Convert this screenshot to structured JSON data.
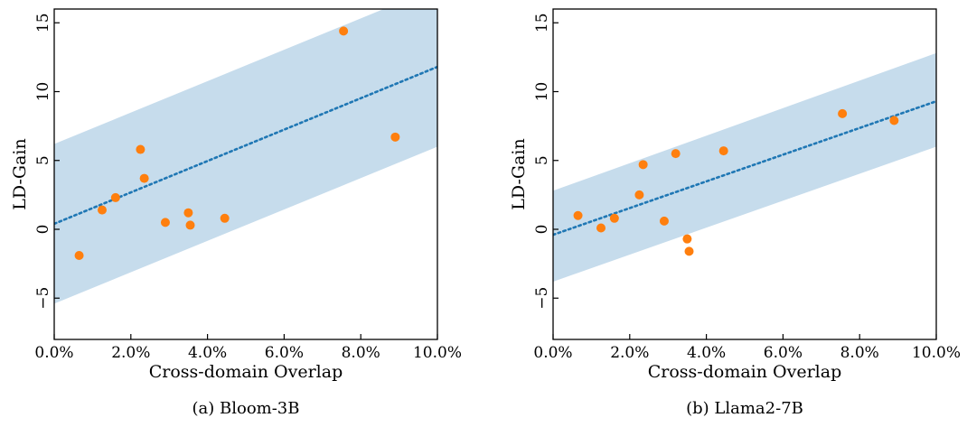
{
  "chart_data": [
    {
      "type": "scatter",
      "caption": "(a) Bloom-3B",
      "xlabel": "Cross-domain Overlap",
      "ylabel": "LD-Gain",
      "xlim": [
        0,
        10
      ],
      "ylim": [
        -8,
        16
      ],
      "xticks": [
        0,
        2,
        4,
        6,
        8,
        10
      ],
      "xtick_labels": [
        "0.0%",
        "2.0%",
        "4.0%",
        "6.0%",
        "8.0%",
        "10.0%"
      ],
      "yticks": [
        -5,
        0,
        5,
        10,
        15
      ],
      "ytick_labels": [
        "−5",
        "0",
        "5",
        "10",
        "15"
      ],
      "grid": false,
      "points": {
        "x": [
          0.65,
          1.25,
          1.6,
          2.25,
          2.35,
          2.9,
          3.5,
          3.55,
          4.45,
          7.55,
          8.9
        ],
        "y": [
          -1.9,
          1.4,
          2.3,
          5.8,
          3.7,
          0.5,
          1.2,
          0.3,
          0.8,
          14.4,
          6.7
        ]
      },
      "fit_line": {
        "x": [
          0,
          10
        ],
        "y": [
          0.4,
          11.8
        ]
      },
      "band": {
        "upper": [
          6.2,
          17.6
        ],
        "lower": [
          -5.4,
          6.0
        ]
      },
      "colors": {
        "points": "#ff7f0e",
        "line": "#1f77b4",
        "band": "#c6dcec"
      }
    },
    {
      "type": "scatter",
      "caption": "(b) Llama2-7B",
      "xlabel": "Cross-domain Overlap",
      "ylabel": "LD-Gain",
      "xlim": [
        0,
        10
      ],
      "ylim": [
        -8,
        16
      ],
      "xticks": [
        0,
        2,
        4,
        6,
        8,
        10
      ],
      "xtick_labels": [
        "0.0%",
        "2.0%",
        "4.0%",
        "6.0%",
        "8.0%",
        "10.0%"
      ],
      "yticks": [
        -5,
        0,
        5,
        10,
        15
      ],
      "ytick_labels": [
        "−5",
        "0",
        "5",
        "10",
        "15"
      ],
      "grid": false,
      "points": {
        "x": [
          0.65,
          1.25,
          1.6,
          2.25,
          2.35,
          2.9,
          3.2,
          3.5,
          3.55,
          4.45,
          7.55,
          8.9
        ],
        "y": [
          1.0,
          0.1,
          0.8,
          2.5,
          4.7,
          0.6,
          5.5,
          -0.7,
          -1.6,
          5.7,
          8.4,
          7.9
        ]
      },
      "fit_line": {
        "x": [
          0,
          10
        ],
        "y": [
          -0.4,
          9.3
        ]
      },
      "band": {
        "upper": [
          2.8,
          12.8
        ],
        "lower": [
          -3.8,
          6.0
        ]
      },
      "colors": {
        "points": "#ff7f0e",
        "line": "#1f77b4",
        "band": "#c6dcec"
      }
    }
  ]
}
